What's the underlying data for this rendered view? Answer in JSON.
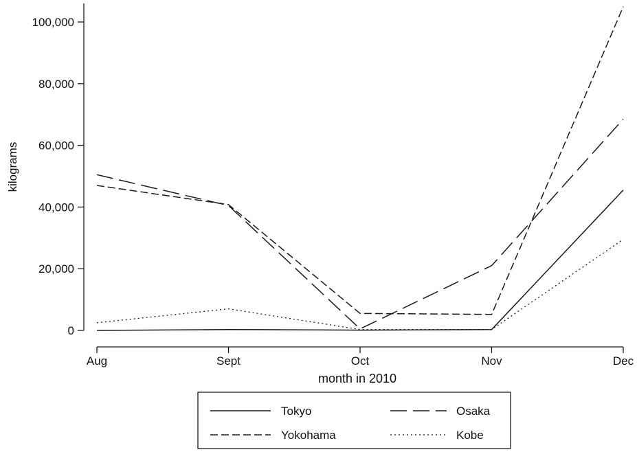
{
  "chart_data": {
    "type": "line",
    "xlabel": "month in 2010",
    "ylabel": "kilograms",
    "categories": [
      "Aug",
      "Sept",
      "Oct",
      "Nov",
      "Dec"
    ],
    "yticks": [
      0,
      20000,
      40000,
      60000,
      80000,
      100000
    ],
    "ytick_labels": [
      "0",
      "20,000",
      "40,000",
      "60,000",
      "80,000",
      "100,000"
    ],
    "ylim": [
      0,
      106000
    ],
    "grid": false,
    "legend_position": "bottom",
    "series": [
      {
        "name": "Tokyo",
        "style": "solid",
        "values": [
          0,
          300,
          100,
          300,
          45500
        ]
      },
      {
        "name": "Osaka",
        "style": "long-dash",
        "values": [
          50500,
          40500,
          500,
          21000,
          68500
        ]
      },
      {
        "name": "Yokohama",
        "style": "dash",
        "values": [
          47000,
          40800,
          5500,
          5200,
          105000
        ]
      },
      {
        "name": "Kobe",
        "style": "dot",
        "values": [
          2500,
          7000,
          300,
          300,
          29500
        ]
      }
    ],
    "line_color": "#1a1a1a"
  }
}
